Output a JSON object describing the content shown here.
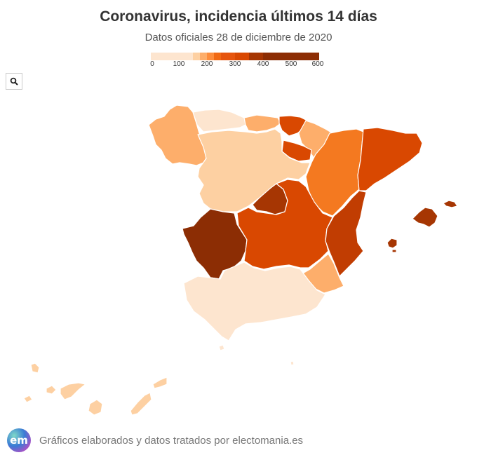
{
  "title": "Coronavirus, incidencia últimos 14 días",
  "subtitle": "Datos oficiales 28 de diciembre de 2020",
  "legend": {
    "ticks": [
      "0",
      "100",
      "200",
      "300",
      "400",
      "500",
      "600"
    ],
    "tick_values": [
      0,
      100,
      200,
      300,
      400,
      500,
      600
    ],
    "bins": [
      {
        "from": 0,
        "to": 150,
        "color": "#fde5cf"
      },
      {
        "from": 150,
        "to": 175,
        "color": "#fdd0a2"
      },
      {
        "from": 175,
        "to": 200,
        "color": "#fdae6b"
      },
      {
        "from": 200,
        "to": 225,
        "color": "#fd8d3c"
      },
      {
        "from": 225,
        "to": 250,
        "color": "#f16913"
      },
      {
        "from": 250,
        "to": 300,
        "color": "#e6550d"
      },
      {
        "from": 300,
        "to": 350,
        "color": "#d94801"
      },
      {
        "from": 350,
        "to": 400,
        "color": "#a63603"
      },
      {
        "from": 400,
        "to": 600,
        "color": "#8c2d04"
      }
    ]
  },
  "regions": [
    {
      "name": "Galicia",
      "color": "#fdae6b"
    },
    {
      "name": "Asturias",
      "color": "#fde5cf"
    },
    {
      "name": "Cantabria",
      "color": "#fdae6b"
    },
    {
      "name": "País Vasco",
      "color": "#d94801"
    },
    {
      "name": "Navarra",
      "color": "#fdae6b"
    },
    {
      "name": "La Rioja",
      "color": "#d94801"
    },
    {
      "name": "Castilla y León",
      "color": "#fdd0a2"
    },
    {
      "name": "Aragón",
      "color": "#f47920"
    },
    {
      "name": "Cataluña",
      "color": "#d94801"
    },
    {
      "name": "Madrid",
      "color": "#a63603"
    },
    {
      "name": "Extremadura",
      "color": "#8c2d04"
    },
    {
      "name": "Castilla-La Mancha",
      "color": "#d94801"
    },
    {
      "name": "Comunitat Valenciana",
      "color": "#c13d02"
    },
    {
      "name": "Murcia",
      "color": "#fdae6b"
    },
    {
      "name": "Andalucía",
      "color": "#fde5cf"
    },
    {
      "name": "Illes Balears",
      "color": "#a63603"
    },
    {
      "name": "Canarias",
      "color": "#fdd0a2"
    },
    {
      "name": "Ceuta",
      "color": "#fde5cf"
    },
    {
      "name": "Melilla",
      "color": "#fde5cf"
    }
  ],
  "footer": {
    "logo_text": "em",
    "text": "Gráficos elaborados y datos tratados por electomania.es"
  },
  "icons": {
    "search": "search-icon"
  }
}
